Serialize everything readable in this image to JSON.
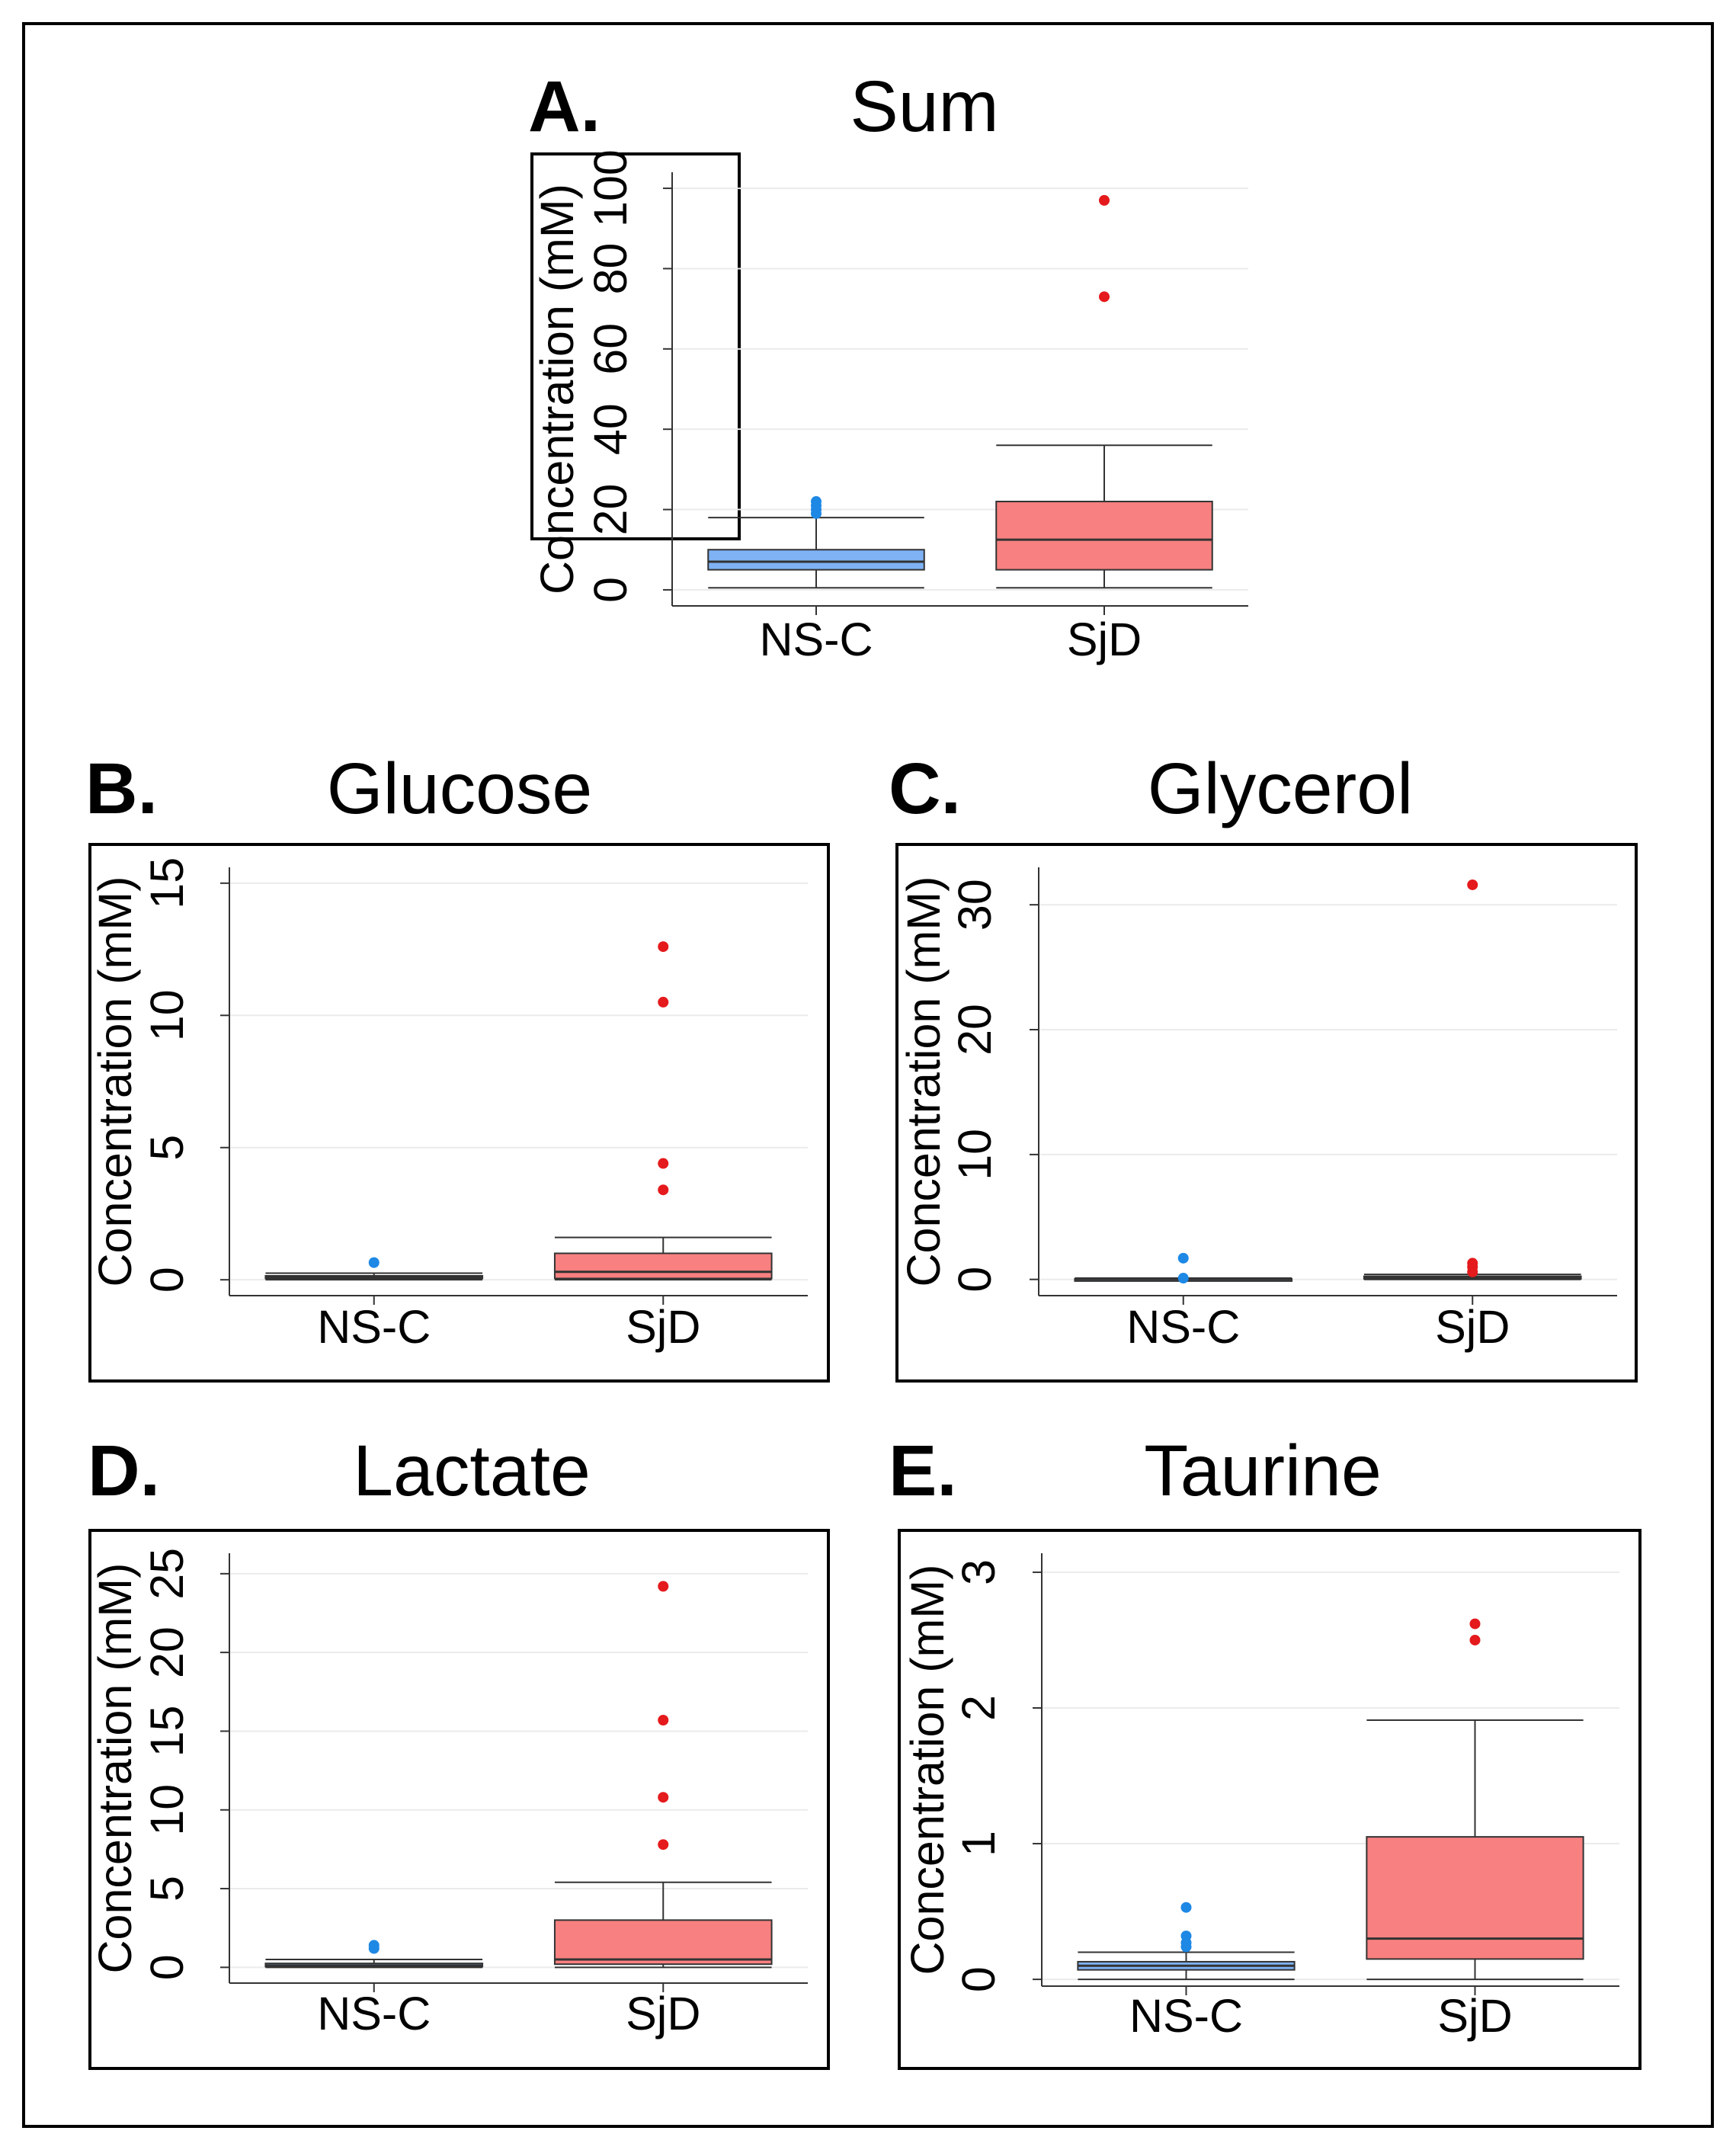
{
  "colors": {
    "ns_c_fill": "#7FB2F5",
    "ns_c_outlier": "#1E88E5",
    "sjd_fill": "#F88080",
    "sjd_outlier": "#E41A1C",
    "box_stroke": "#333333",
    "grid": "#ebebeb",
    "frame": "#000000"
  },
  "chart_data": [
    {
      "id": "sum",
      "letter": "A.",
      "title": "Sum",
      "type": "box",
      "ylabel": "Concentration (mM)",
      "ylim": [
        -4,
        104
      ],
      "yticks": [
        0,
        20,
        40,
        60,
        80,
        100
      ],
      "categories": [
        "NS-C",
        "SjD"
      ],
      "groups": [
        {
          "name": "NS-C",
          "min": 0.5,
          "q1": 5,
          "median": 7,
          "q3": 10,
          "max": 18,
          "outliers": [
            19,
            20,
            21,
            22
          ]
        },
        {
          "name": "SjD",
          "min": 0.5,
          "q1": 5,
          "median": 12.5,
          "q3": 22,
          "max": 36,
          "outliers": [
            73,
            97
          ]
        }
      ]
    },
    {
      "id": "glucose",
      "letter": "B.",
      "title": "Glucose",
      "type": "box",
      "ylabel": "Concentration (mM)",
      "ylim": [
        -0.6,
        15.6
      ],
      "yticks": [
        0,
        5,
        10,
        15
      ],
      "categories": [
        "NS-C",
        "SjD"
      ],
      "groups": [
        {
          "name": "NS-C",
          "min": 0.0,
          "q1": 0.05,
          "median": 0.1,
          "q3": 0.15,
          "max": 0.25,
          "outliers": [
            0.65
          ]
        },
        {
          "name": "SjD",
          "min": 0.0,
          "q1": 0.05,
          "median": 0.3,
          "q3": 1.0,
          "max": 1.6,
          "outliers": [
            3.4,
            4.4,
            10.5,
            12.6
          ]
        }
      ]
    },
    {
      "id": "glycerol",
      "letter": "C.",
      "title": "Glycerol",
      "type": "box",
      "ylabel": "Concentration (mM)",
      "ylim": [
        -1.3,
        33
      ],
      "yticks": [
        0,
        10,
        20,
        30
      ],
      "categories": [
        "NS-C",
        "SjD"
      ],
      "groups": [
        {
          "name": "NS-C",
          "min": 0.0,
          "q1": 0.0,
          "median": 0.02,
          "q3": 0.05,
          "max": 0.1,
          "outliers": [
            0.1,
            1.7
          ]
        },
        {
          "name": "SjD",
          "min": 0.0,
          "q1": 0.05,
          "median": 0.12,
          "q3": 0.25,
          "max": 0.4,
          "outliers": [
            0.6,
            1.0,
            1.3,
            31.6
          ]
        }
      ]
    },
    {
      "id": "lactate",
      "letter": "D.",
      "title": "Lactate",
      "type": "box",
      "ylabel": "Concentration (mM)",
      "ylim": [
        -1,
        26.3
      ],
      "yticks": [
        0,
        5,
        10,
        15,
        20,
        25
      ],
      "categories": [
        "NS-C",
        "SjD"
      ],
      "groups": [
        {
          "name": "NS-C",
          "min": 0.0,
          "q1": 0.05,
          "median": 0.12,
          "q3": 0.25,
          "max": 0.5,
          "outliers": [
            1.2,
            1.4
          ]
        },
        {
          "name": "SjD",
          "min": 0.0,
          "q1": 0.2,
          "median": 0.5,
          "q3": 3.0,
          "max": 5.4,
          "outliers": [
            7.8,
            10.8,
            15.7,
            24.2
          ]
        }
      ]
    },
    {
      "id": "taurine",
      "letter": "E.",
      "title": "Taurine",
      "type": "box",
      "ylabel": "Concentration (mM)",
      "ylim": [
        -0.05,
        3.14
      ],
      "yticks": [
        0,
        1,
        2,
        3
      ],
      "categories": [
        "NS-C",
        "SjD"
      ],
      "groups": [
        {
          "name": "NS-C",
          "min": 0.0,
          "q1": 0.07,
          "median": 0.1,
          "q3": 0.13,
          "max": 0.2,
          "outliers": [
            0.24,
            0.27,
            0.32,
            0.53
          ]
        },
        {
          "name": "SjD",
          "min": 0.0,
          "q1": 0.15,
          "median": 0.3,
          "q3": 1.05,
          "max": 1.91,
          "outliers": [
            2.5,
            2.62
          ]
        }
      ]
    }
  ]
}
